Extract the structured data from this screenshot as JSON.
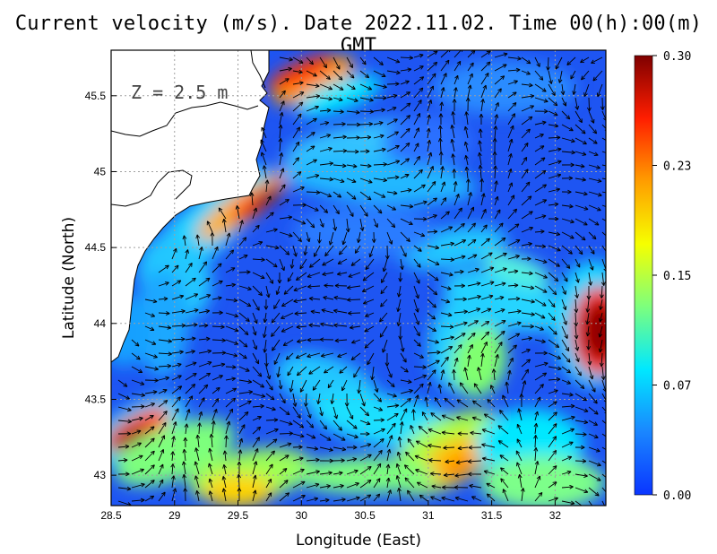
{
  "title": "Current velocity (m/s). Date 2022.11.02. Time 00(h):00(m) GMT",
  "depth_label": "Z = 2.5 m",
  "chart_data": {
    "type": "heatmap",
    "variable": "current velocity",
    "units": "m/s",
    "xlabel": "Longitude (East)",
    "ylabel": "Latitude (North)",
    "xlim": [
      28.5,
      32.4
    ],
    "ylim": [
      42.8,
      45.8
    ],
    "x_ticks": [
      "28.5",
      "29",
      "29.5",
      "30",
      "30.5",
      "31",
      "31.5",
      "32"
    ],
    "y_ticks": [
      "43",
      "43.5",
      "44",
      "44.5",
      "45",
      "45.5"
    ],
    "x_tick_values": [
      28.5,
      29,
      29.5,
      30,
      30.5,
      31,
      31.5,
      32
    ],
    "y_tick_values": [
      43,
      43.5,
      44,
      44.5,
      45,
      45.5
    ],
    "grid": true,
    "colorbar": {
      "min": 0.0,
      "max": 0.3,
      "tick_labels": [
        "0.00",
        "0.07",
        "0.15",
        "0.23",
        "0.30"
      ],
      "tick_values": [
        0.0,
        0.075,
        0.15,
        0.225,
        0.3
      ],
      "colors": [
        "#0a35ff",
        "#1a86ff",
        "#00e8ff",
        "#7dff7d",
        "#f6ff00",
        "#ff9d00",
        "#ff1e00",
        "#7f0000"
      ]
    },
    "colors": {
      "land": "#ffffff",
      "coastline": "#000000",
      "grid": "#a0a0a0",
      "arrows": "#000000"
    }
  }
}
